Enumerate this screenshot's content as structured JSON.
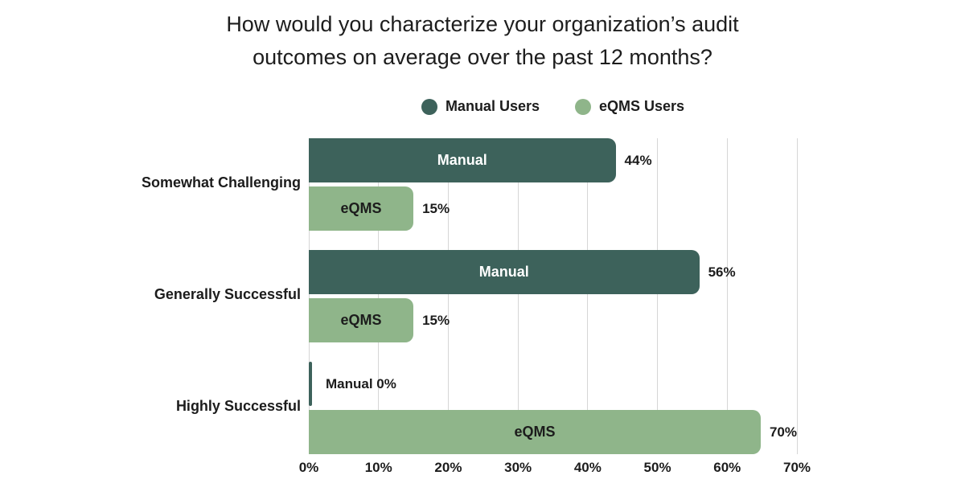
{
  "title_lines": [
    "How would you characterize your organization’s audit",
    "outcomes on average over the past 12 months?"
  ],
  "legend": [
    {
      "label": "Manual Users",
      "color": "#3d625b"
    },
    {
      "label": "eQMS Users",
      "color": "#8fb58a"
    }
  ],
  "colors": {
    "manual_bar": "#3d625b",
    "eqms_bar": "#8fb58a",
    "manual_inner_label": "#ffffff",
    "eqms_inner_label": "#1c1c1c",
    "gridline": "#d6d6d6",
    "text": "#1c1c1c"
  },
  "chart_data": {
    "type": "bar",
    "orientation": "horizontal",
    "title": "How would you characterize your organization’s audit outcomes on average over the past 12 months?",
    "categories": [
      "Somewhat Challenging",
      "Generally Successful",
      "Highly Successful"
    ],
    "series": [
      {
        "name": "Manual Users",
        "bar_label": "Manual",
        "color": "#3d625b",
        "label_color": "#ffffff",
        "values": [
          44,
          56,
          0
        ]
      },
      {
        "name": "eQMS Users",
        "bar_label": "eQMS",
        "color": "#8fb58a",
        "label_color": "#1c1c1c",
        "values": [
          15,
          15,
          70
        ]
      }
    ],
    "value_suffix": "%",
    "value_labels": {
      "manual": [
        "44%",
        "56%",
        "Manual 0%"
      ],
      "eqms": [
        "15%",
        "15%",
        "70%"
      ]
    },
    "xlim": [
      0,
      70
    ],
    "x_ticks": [
      "0%",
      "10%",
      "20%",
      "30%",
      "40%",
      "50%",
      "60%",
      "70%"
    ],
    "grid": true,
    "legend_position": "top-center"
  }
}
